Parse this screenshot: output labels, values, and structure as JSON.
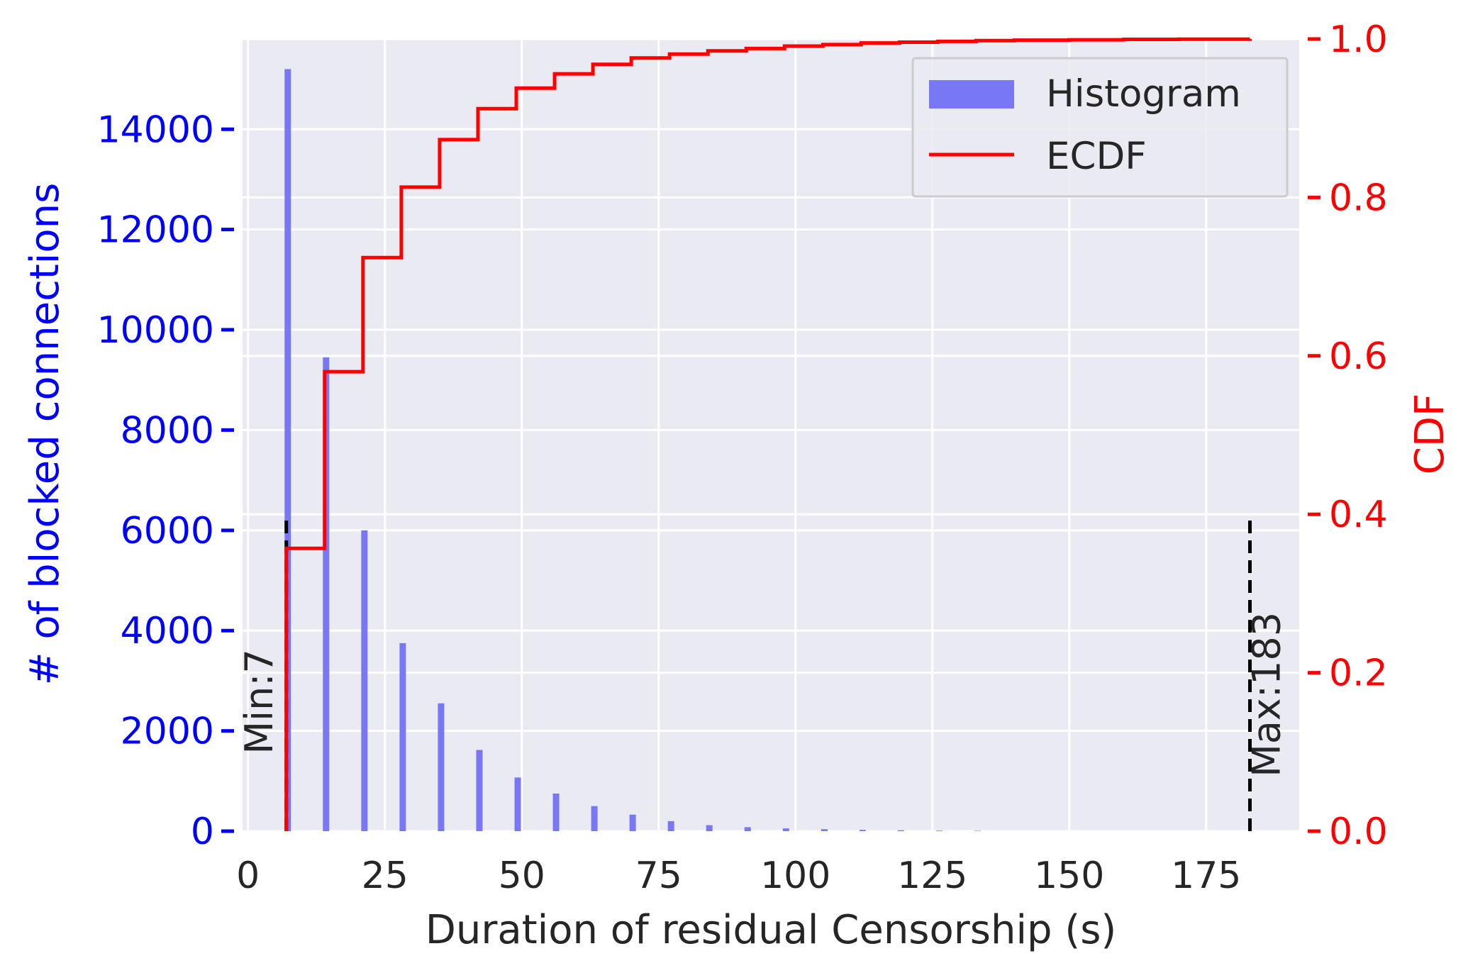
{
  "chart_data": {
    "type": "bar",
    "subtype": "histogram_with_ecdf_overlay",
    "xlabel": "Duration of residual Censorship (s)",
    "ylabel_left": "# of blocked connections",
    "ylabel_right": "CDF",
    "xlim": [
      -1,
      192
    ],
    "ylim_left": [
      0,
      15800
    ],
    "ylim_right": [
      0,
      1.0
    ],
    "x_ticks": [
      "0",
      "25",
      "50",
      "75",
      "100",
      "125",
      "150",
      "175"
    ],
    "y_left_ticks": [
      "0",
      "2000",
      "4000",
      "6000",
      "8000",
      "10000",
      "12000",
      "14000"
    ],
    "y_right_ticks": [
      "0.0",
      "0.2",
      "0.4",
      "0.6",
      "0.8",
      "1.0"
    ],
    "grid": true,
    "legend_position": "upper-right",
    "colors": {
      "histogram": "#7878f5",
      "ecdf": "#ff0000",
      "left_axis": "#0000ff",
      "right_axis": "#ff0000",
      "plot_background": "#eaeaf2",
      "grid": "#ffffff",
      "marker_line": "#000000",
      "text": "#262626"
    },
    "histogram": {
      "name": "Histogram",
      "x": [
        7,
        14,
        21,
        28,
        35,
        42,
        49,
        56,
        63,
        70,
        77,
        84,
        91,
        98,
        105,
        112,
        119,
        126,
        133
      ],
      "values": [
        15200,
        9450,
        6000,
        3750,
        2550,
        1620,
        1070,
        750,
        500,
        330,
        200,
        120,
        80,
        55,
        40,
        25,
        18,
        12,
        8
      ]
    },
    "ecdf": {
      "name": "ECDF",
      "x": [
        7,
        14,
        21,
        28,
        35,
        42,
        49,
        56,
        63,
        70,
        77,
        84,
        91,
        98,
        105,
        112,
        119,
        126,
        133,
        140,
        150,
        160,
        170,
        183
      ],
      "y": [
        0.357,
        0.58,
        0.724,
        0.813,
        0.873,
        0.912,
        0.938,
        0.956,
        0.968,
        0.976,
        0.981,
        0.985,
        0.988,
        0.991,
        0.993,
        0.995,
        0.996,
        0.997,
        0.998,
        0.9985,
        0.999,
        0.9995,
        0.9998,
        1.0
      ]
    },
    "markers": [
      {
        "label": "Min:7",
        "x": 7,
        "y_top": 6300
      },
      {
        "label": "Max:183",
        "x": 183,
        "y_top": 6300
      }
    ]
  }
}
